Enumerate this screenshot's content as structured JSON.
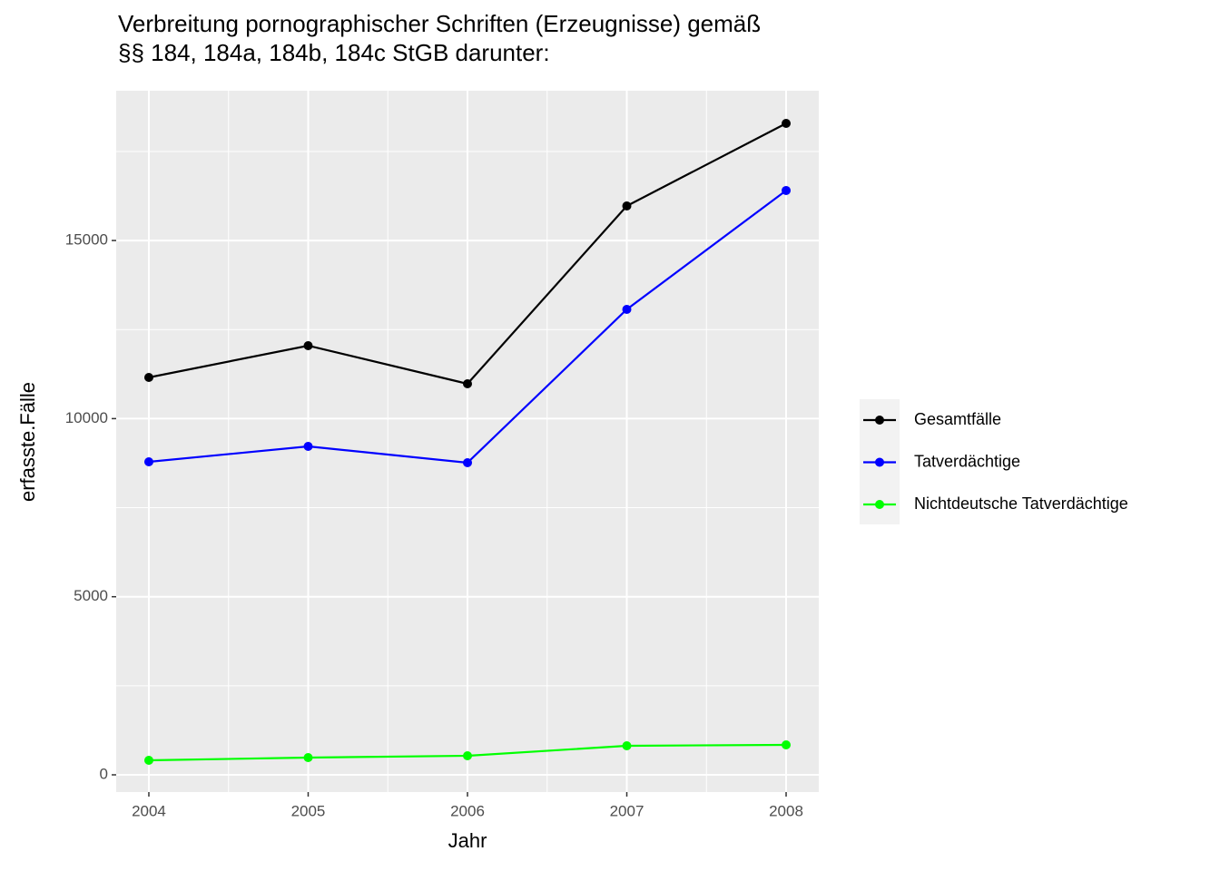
{
  "chart_data": {
    "type": "line",
    "title": "Verbreitung pornographischer Schriften (Erzeugnisse) gemäß\n§§ 184, 184a, 184b, 184c StGB darunter:",
    "x_label": "Jahr",
    "y_label": "erfasste.Fälle",
    "x": [
      2004,
      2005,
      2006,
      2007,
      2008
    ],
    "series": [
      {
        "name": "Gesamtfälle",
        "color": "#000000",
        "values": [
          11156,
          12048,
          10978,
          15970,
          18288
        ]
      },
      {
        "name": "Tatverdächtige",
        "color": "#0000ff",
        "values": [
          8787,
          9220,
          8762,
          13067,
          16404
        ]
      },
      {
        "name": "Nichtdeutsche Tatverdächtige",
        "color": "#00ff00",
        "values": [
          408,
          484,
          535,
          815,
          841
        ]
      }
    ],
    "xlim": [
      2003.795,
      2008.205
    ],
    "xticks": [
      2004,
      2005,
      2006,
      2007,
      2008
    ],
    "ylim": [
      -484,
      19205
    ],
    "yticks": [
      0,
      5000,
      10000,
      15000
    ],
    "grid": true,
    "legend": "right"
  }
}
